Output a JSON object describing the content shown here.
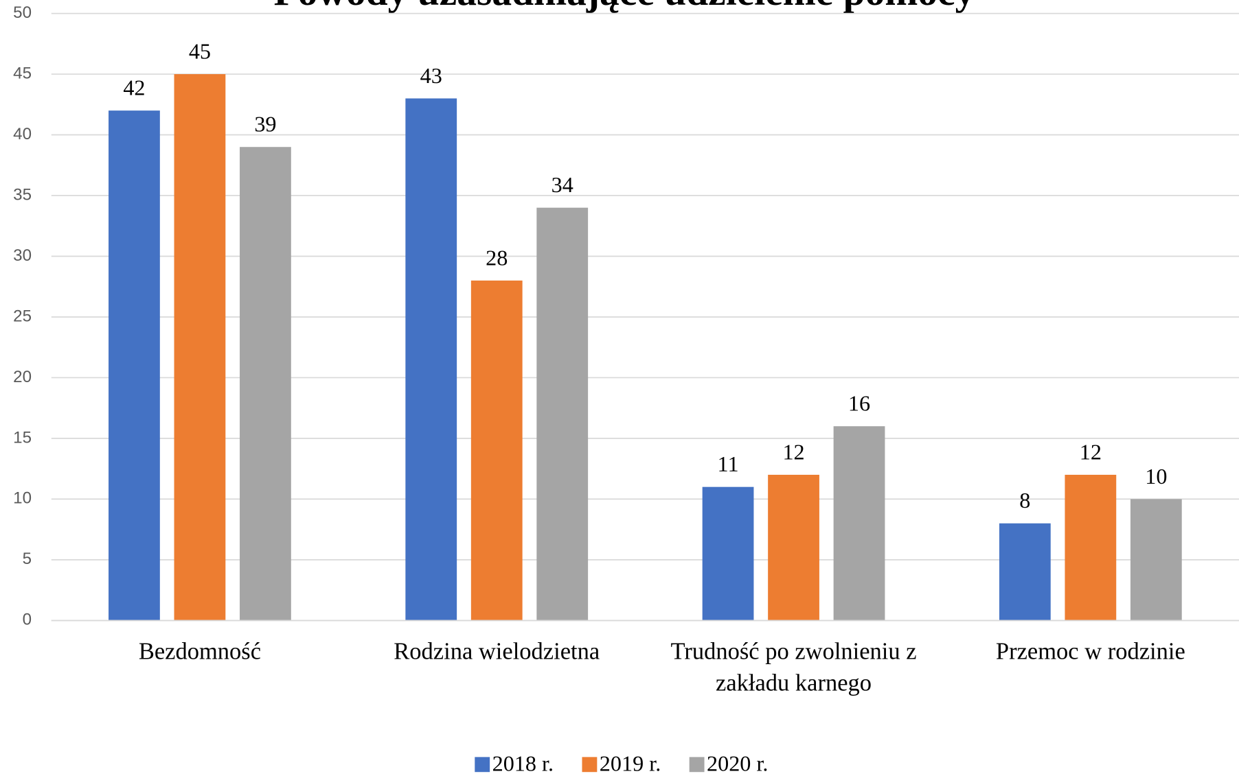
{
  "chart_data": {
    "type": "bar",
    "title": "Powody uzasadniające udzielenie pomocy",
    "categories": [
      "Bezdomność",
      "Rodzina wielodzietna",
      "Trudność po zwolnieniu z zakładu karnego",
      "Przemoc w rodzinie"
    ],
    "series": [
      {
        "name": "2018 r.",
        "color": "#4472c4",
        "values": [
          42,
          43,
          11,
          8
        ]
      },
      {
        "name": "2019 r.",
        "color": "#ed7d31",
        "values": [
          45,
          28,
          12,
          12
        ]
      },
      {
        "name": "2020 r.",
        "color": "#a5a5a5",
        "values": [
          39,
          34,
          16,
          10
        ]
      }
    ],
    "ylim": [
      0,
      50
    ],
    "yticks": [
      0,
      5,
      10,
      15,
      20,
      25,
      30,
      35,
      40,
      45,
      50
    ],
    "grid": true,
    "legend": "bottom"
  }
}
